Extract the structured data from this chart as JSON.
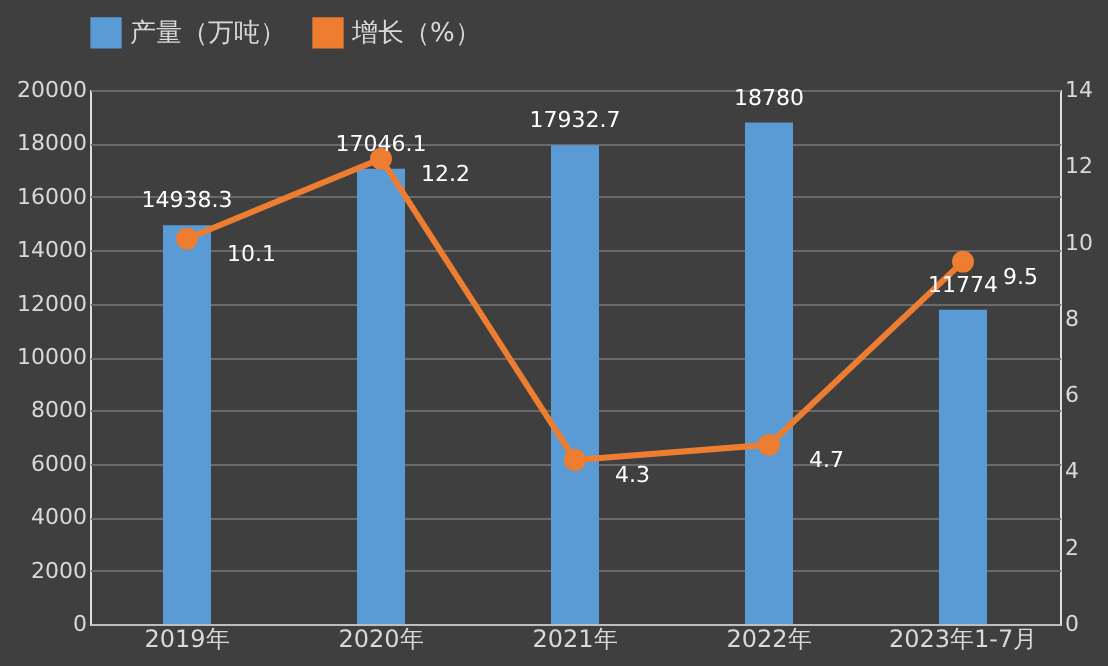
{
  "chart_data": {
    "type": "bar",
    "categories": [
      "2019年",
      "2020年",
      "2021年",
      "2022年",
      "2023年1-7月"
    ],
    "series": [
      {
        "name": "产量（万吨）",
        "color": "#5b9bd5",
        "values": [
          14938.3,
          17046.1,
          17932.7,
          18780,
          11774
        ]
      },
      {
        "name": "增长（%）",
        "type": "line",
        "axis": "y2",
        "color": "#ed7d31",
        "values": [
          10.1,
          12.2,
          4.3,
          4.7,
          9.5
        ],
        "marker": "circle"
      }
    ],
    "ylim": [
      0,
      20000
    ],
    "yticks": [
      0,
      2000,
      4000,
      6000,
      8000,
      10000,
      12000,
      14000,
      16000,
      18000,
      20000
    ],
    "y2lim": [
      0,
      14
    ],
    "y2ticks": [
      0,
      2,
      4,
      6,
      8,
      10,
      12,
      14
    ],
    "data_labels": true,
    "grid": "y",
    "legend": "top"
  }
}
